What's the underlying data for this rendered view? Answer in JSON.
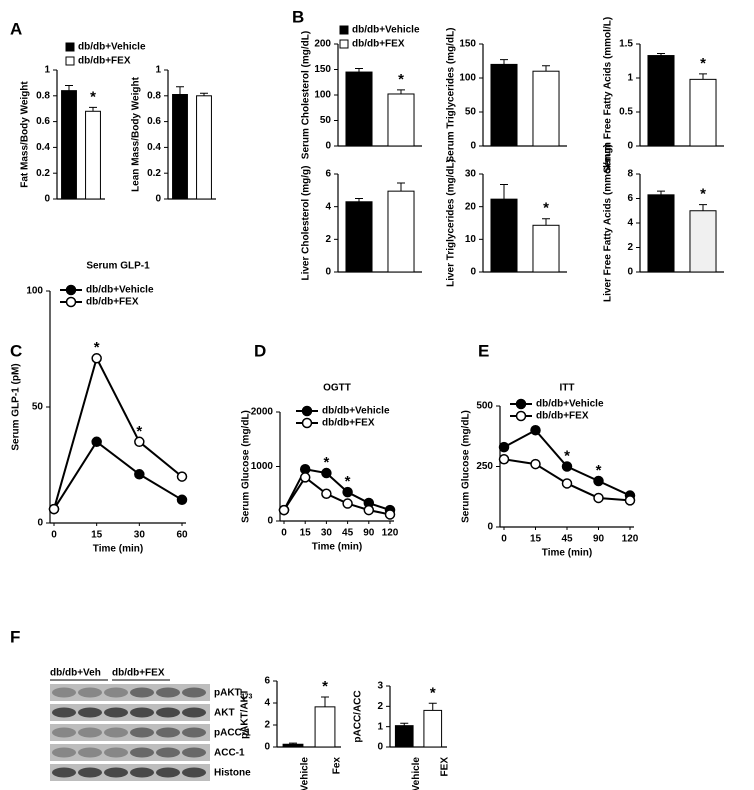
{
  "panel_labels": [
    "A",
    "B",
    "C",
    "D",
    "E",
    "F"
  ],
  "blot": {
    "groups": [
      "db/db+Veh",
      "db/db+FEX"
    ],
    "bands": [
      {
        "label": "pAKT",
        "sub": "473"
      },
      {
        "label": "AKT"
      },
      {
        "label": "pACC-1"
      },
      {
        "label": "ACC-1"
      },
      {
        "label": "Histone"
      }
    ]
  },
  "chart_data": [
    {
      "type": "bar",
      "ylabel": "Fat Mass/Body Weight",
      "categories": [
        null,
        null
      ],
      "values": [
        0.84,
        0.68
      ],
      "errors": [
        0.04,
        0.03
      ],
      "colors": [
        "#000000",
        "#ffffff"
      ],
      "ylim": [
        0,
        1
      ],
      "yticks": [
        0,
        0.2,
        0.4,
        0.6,
        0.8,
        1
      ],
      "annotations": [
        {
          "text": "*",
          "category": 1
        }
      ],
      "legend": [
        {
          "name": "db/db+Vehicle",
          "color": "#000000"
        },
        {
          "name": "db/db+FEX",
          "color": "#ffffff"
        }
      ]
    },
    {
      "type": "bar",
      "ylabel": "Lean Mass/Body Weight",
      "categories": [
        null,
        null
      ],
      "values": [
        0.81,
        0.8
      ],
      "errors": [
        0.06,
        0.02
      ],
      "colors": [
        "#000000",
        "#ffffff"
      ],
      "ylim": [
        0,
        1
      ],
      "yticks": [
        0,
        0.2,
        0.4,
        0.6,
        0.8,
        1
      ]
    },
    {
      "type": "bar",
      "ylabel": "Serum Cholesterol (mg/dL)",
      "categories": [
        null,
        null
      ],
      "values": [
        145,
        102
      ],
      "errors": [
        7,
        8
      ],
      "colors": [
        "#000000",
        "#ffffff"
      ],
      "ylim": [
        0,
        200
      ],
      "yticks": [
        0,
        50,
        100,
        150,
        200
      ],
      "annotations": [
        {
          "text": "*",
          "category": 1
        }
      ],
      "legend": [
        {
          "name": "db/db+Vehicle",
          "color": "#000000"
        },
        {
          "name": "db/db+FEX",
          "color": "#ffffff"
        }
      ]
    },
    {
      "type": "bar",
      "ylabel": "Serum Triglycerides (mg/dL)",
      "categories": [
        null,
        null
      ],
      "values": [
        120,
        110
      ],
      "errors": [
        7,
        8
      ],
      "colors": [
        "#000000",
        "#ffffff"
      ],
      "ylim": [
        0,
        150
      ],
      "yticks": [
        0,
        50,
        100,
        150
      ]
    },
    {
      "type": "bar",
      "ylabel": "Serum Free Fatty Acids (mmol/L)",
      "categories": [
        null,
        null
      ],
      "values": [
        1.33,
        0.98
      ],
      "errors": [
        0.03,
        0.08
      ],
      "colors": [
        "#000000",
        "#ffffff"
      ],
      "ylim": [
        0,
        1.5
      ],
      "yticks": [
        0,
        0.5,
        1,
        1.5
      ],
      "annotations": [
        {
          "text": "*",
          "category": 1
        }
      ]
    },
    {
      "type": "bar",
      "ylabel": "Liver Cholesterol (mg/g)",
      "categories": [
        null,
        null
      ],
      "values": [
        4.3,
        4.95
      ],
      "errors": [
        0.2,
        0.5
      ],
      "colors": [
        "#000000",
        "#ffffff"
      ],
      "ylim": [
        0,
        6
      ],
      "yticks": [
        0,
        2,
        4,
        6
      ]
    },
    {
      "type": "bar",
      "ylabel": "Liver Triglycerides (mg/dL)",
      "categories": [
        null,
        null
      ],
      "values": [
        22.3,
        14.3
      ],
      "errors": [
        4.5,
        2
      ],
      "colors": [
        "#000000",
        "#ffffff"
      ],
      "ylim": [
        0,
        30
      ],
      "yticks": [
        0,
        10,
        20,
        30
      ],
      "annotations": [
        {
          "text": "*",
          "category": 1
        }
      ]
    },
    {
      "type": "bar",
      "ylabel": "Liver Free Fatty Acids (mmol/mg)",
      "categories": [
        null,
        null
      ],
      "values": [
        6.3,
        5.0
      ],
      "errors": [
        0.3,
        0.5
      ],
      "colors": [
        "#000000",
        "#f0f0f0"
      ],
      "ylim": [
        0,
        8
      ],
      "yticks": [
        0,
        2,
        4,
        6,
        8
      ],
      "annotations": [
        {
          "text": "*",
          "category": 1
        }
      ]
    },
    {
      "type": "line",
      "title": "Serum GLP-1",
      "xlabel": "Time (min)",
      "ylabel": "Serum GLP-1 (pM)",
      "categories": [
        "0",
        "15",
        "30",
        "60"
      ],
      "series": [
        {
          "name": "db/db+Vehicle",
          "color": "#000000",
          "marker_fill": "#000000",
          "values": [
            6,
            35,
            21,
            10
          ]
        },
        {
          "name": "db/db+FEX",
          "color": "#000000",
          "marker_fill": "#ffffff",
          "values": [
            6,
            71,
            35,
            20
          ]
        }
      ],
      "ylim": [
        0,
        100
      ],
      "yticks": [
        0,
        50,
        100
      ],
      "annotations": [
        {
          "text": "*",
          "category": 1
        },
        {
          "text": "*",
          "category": 2
        }
      ]
    },
    {
      "type": "line",
      "title": "OGTT",
      "xlabel": "Time (min)",
      "ylabel": "Serum Glucose (mg/dL)",
      "categories": [
        "0",
        "15",
        "30",
        "45",
        "90",
        "120"
      ],
      "series": [
        {
          "name": "db/db+Vehicle",
          "color": "#000000",
          "marker_fill": "#000000",
          "values": [
            200,
            950,
            880,
            530,
            330,
            200
          ]
        },
        {
          "name": "db/db+FEX",
          "color": "#000000",
          "marker_fill": "#ffffff",
          "values": [
            200,
            800,
            500,
            320,
            200,
            120
          ]
        }
      ],
      "ylim": [
        0,
        2000
      ],
      "yticks": [
        0,
        1000,
        2000
      ],
      "annotations": [
        {
          "text": "*",
          "category": 2
        },
        {
          "text": "*",
          "category": 3
        }
      ]
    },
    {
      "type": "line",
      "title": "ITT",
      "xlabel": "Time (min)",
      "ylabel": "Serum Glucose (mg/dL)",
      "categories": [
        "0",
        "15",
        "45",
        "90",
        "120"
      ],
      "series": [
        {
          "name": "db/db+Vehicle",
          "color": "#000000",
          "marker_fill": "#000000",
          "values": [
            330,
            400,
            250,
            190,
            130
          ]
        },
        {
          "name": "db/db+FEX",
          "color": "#000000",
          "marker_fill": "#ffffff",
          "values": [
            280,
            260,
            180,
            120,
            110
          ]
        }
      ],
      "ylim": [
        0,
        500
      ],
      "yticks": [
        0,
        250,
        500
      ],
      "annotations": [
        {
          "text": "*",
          "category": 2
        },
        {
          "text": "*",
          "category": 3
        }
      ]
    },
    {
      "type": "bar",
      "ylabel": "pAKT/AKT",
      "categories": [
        "Vehicle",
        "Fex"
      ],
      "values": [
        0.25,
        3.65
      ],
      "errors": [
        0.1,
        0.9
      ],
      "colors": [
        "#000000",
        "#ffffff"
      ],
      "ylim": [
        0,
        6
      ],
      "yticks": [
        0,
        2,
        4,
        6
      ],
      "annotations": [
        {
          "text": "*",
          "category": 1
        }
      ]
    },
    {
      "type": "bar",
      "ylabel": "pACC/ACC",
      "categories": [
        "Vehicle",
        "FEX"
      ],
      "values": [
        1.05,
        1.8
      ],
      "errors": [
        0.12,
        0.35
      ],
      "colors": [
        "#000000",
        "#ffffff"
      ],
      "ylim": [
        0,
        3
      ],
      "yticks": [
        0,
        1,
        2,
        3
      ],
      "annotations": [
        {
          "text": "*",
          "category": 1
        }
      ]
    }
  ]
}
